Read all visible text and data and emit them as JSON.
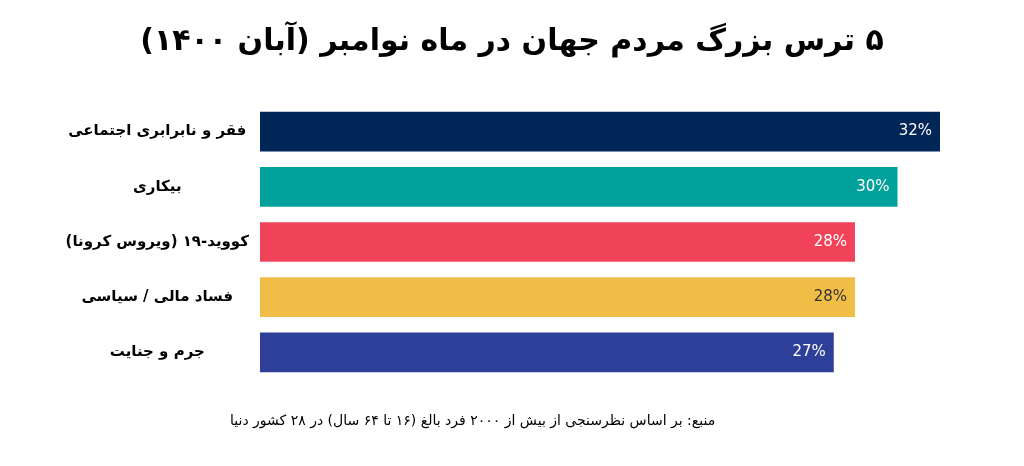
{
  "chart_data": {
    "type": "bar",
    "orientation": "horizontal",
    "title": "۵ ترس بزرگ مردم جهان در ماه نوامبر (آبان ۱۴۰۰)",
    "categories": [
      "فقر و نابرابری اجتماعی",
      "بیکاری",
      "کووید-۱۹ (ویروس کرونا)",
      "فساد مالی / سیاسی",
      "جرم و جنایت"
    ],
    "values": [
      32,
      30,
      28,
      28,
      27
    ],
    "colors": [
      "#002658",
      "#00a19b",
      "#f0435a",
      "#f0bd47",
      "#2e3f9a"
    ],
    "value_labels": [
      "32%",
      "30%",
      "28%",
      "28%",
      "27%"
    ],
    "legend": false,
    "tick_labels": "y",
    "annotations": [
      "منبع: بر اساس نظرسنجی از بیش از ۲۰۰۰ فرد بالغ (۱۶ تا ۶۴ سال) در ۲۸ کشور دنیا"
    ]
  }
}
